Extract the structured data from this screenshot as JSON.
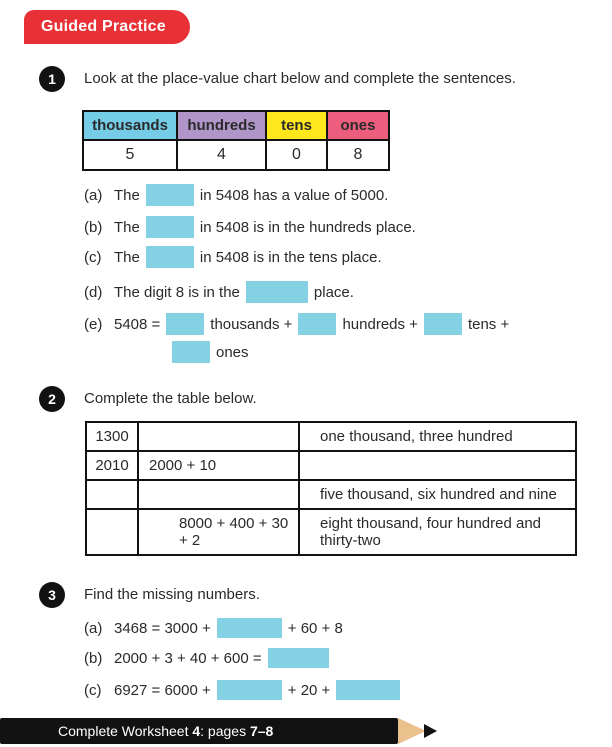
{
  "banner": {
    "title": "Guided Practice",
    "color": "#e73137"
  },
  "colors": {
    "answer_box": "#84d1e4",
    "thousands_header": "#74cce6",
    "hundreds_header": "#b095c9",
    "tens_header": "#ffe71e",
    "ones_header": "#ed5e7e",
    "pencil_wood": "#eac08d",
    "footer_bar": "#121212"
  },
  "q1": {
    "number": "1",
    "prompt": "Look at the place-value chart below and complete the sentences.",
    "chart": {
      "headers": [
        "thousands",
        "hundreds",
        "tens",
        "ones"
      ],
      "values": [
        "5",
        "4",
        "0",
        "8"
      ]
    },
    "parts": {
      "a": {
        "label": "(a)",
        "pre": "The",
        "post": "in 5408 has a value of 5000."
      },
      "b": {
        "label": "(b)",
        "pre": "The",
        "post": "in 5408 is in the hundreds place."
      },
      "c": {
        "label": "(c)",
        "pre": "The",
        "post": "in 5408 is in the tens place."
      },
      "d": {
        "label": "(d)",
        "pre": "The digit 8 is in the",
        "post": "place."
      },
      "e": {
        "label": "(e)",
        "pre": "5408 =",
        "unit1": "thousands +",
        "unit2": "hundreds +",
        "unit3": "tens +",
        "unit4": "ones"
      }
    }
  },
  "q2": {
    "number": "2",
    "prompt": "Complete the table below.",
    "rows": [
      [
        "1300",
        "",
        "one thousand, three hundred"
      ],
      [
        "2010",
        "2000 + 10",
        ""
      ],
      [
        "",
        "",
        "five thousand, six hundred and nine"
      ],
      [
        "",
        "8000 + 400 + 30 + 2",
        "eight thousand, four hundred and thirty-two"
      ]
    ]
  },
  "q3": {
    "number": "3",
    "prompt": "Find the missing numbers.",
    "parts": {
      "a": {
        "label": "(a)",
        "pre": "3468 = 3000 +",
        "post": "+ 60 + 8"
      },
      "b": {
        "label": "(b)",
        "pre": "2000 + 3 + 40 + 600 ="
      },
      "c": {
        "label": "(c)",
        "pre": "6927 = 6000 +",
        "mid": "+ 20 +"
      }
    }
  },
  "footer": {
    "text1": "Complete Worksheet ",
    "bold1": "4",
    "text2": ": pages ",
    "bold2": "7–8"
  }
}
